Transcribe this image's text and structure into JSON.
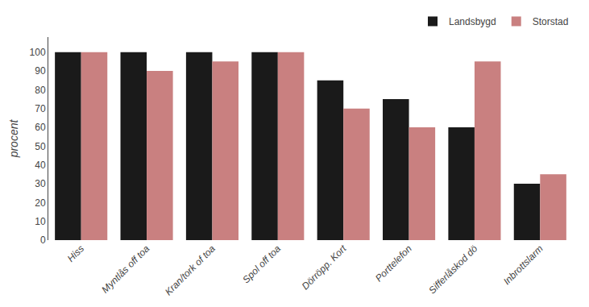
{
  "chart_data": {
    "type": "bar",
    "ylabel": "procent",
    "categories": [
      "Hiss",
      "Myntlås off toa",
      "Kran/tork of toa",
      "Spol off toa",
      "Dörröpp. Kort",
      "Porttelefon",
      "Sifferlåskod dö",
      "Inbrottslarm"
    ],
    "series": [
      {
        "name": "Landsbygd",
        "color": "#1a1a1a",
        "values": [
          100,
          100,
          100,
          100,
          85,
          75,
          60,
          30
        ]
      },
      {
        "name": "Storstad",
        "color": "#c98080",
        "values": [
          100,
          90,
          95,
          100,
          70,
          60,
          95,
          35
        ]
      }
    ],
    "ylim": [
      0,
      108
    ],
    "yticks": [
      0,
      10,
      20,
      30,
      40,
      50,
      60,
      70,
      80,
      90,
      100
    ],
    "grid": false,
    "legend": "upper right"
  }
}
